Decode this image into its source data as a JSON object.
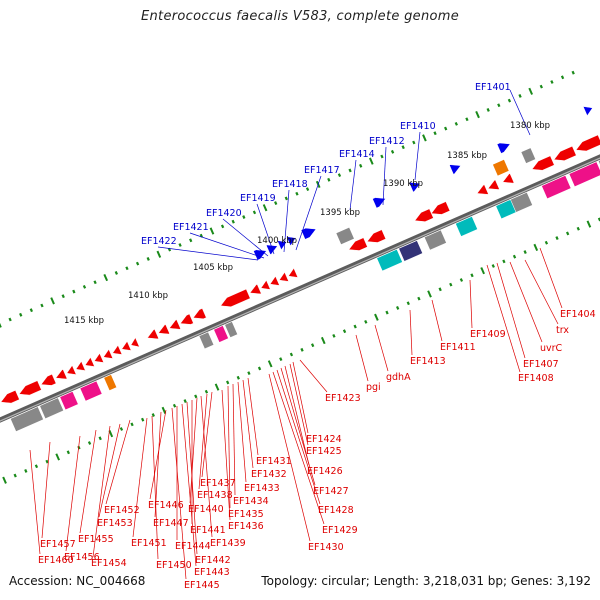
{
  "title": "Enterococcus faecalis V583, complete genome",
  "accession": "Accession: NC_004668",
  "topology": "Topology: circular; Length: 3,218,031 bp; Genes: 3,192",
  "colors": {
    "backbone": "#777777",
    "tick_ruler": "#1a8a1a",
    "forward_gene": "#ee0000",
    "reverse_gene": "#0000ee",
    "forward_label": "#dd0000",
    "reverse_label": "#0000cc",
    "cog_magenta": "#ee1188",
    "cog_cyan": "#00bbbb",
    "cog_gray": "#888888",
    "cog_navy": "#333377",
    "cog_orange": "#ee7700"
  },
  "scale_labels": [
    "1380 kbp",
    "1385 kbp",
    "1390 kbp",
    "1395 kbp",
    "1400 kbp",
    "1405 kbp",
    "1410 kbp",
    "1415 kbp"
  ],
  "reverse_gene_labels": [
    "EF1401",
    "EF1410",
    "EF1412",
    "EF1414",
    "EF1417",
    "EF1418",
    "EF1419",
    "EF1420",
    "EF1421",
    "EF1422"
  ],
  "forward_gene_labels": [
    "EF1404",
    "trx",
    "uvrC",
    "EF1407",
    "EF1408",
    "EF1409",
    "EF1411",
    "EF1413",
    "gdhA",
    "pgi",
    "EF1423",
    "EF1424",
    "EF1425",
    "EF1426",
    "EF1427",
    "EF1428",
    "EF1429",
    "EF1430",
    "EF1431",
    "EF1432",
    "EF1433",
    "EF1434",
    "EF1435",
    "EF1436",
    "EF1437",
    "EF1438",
    "EF1439",
    "EF1440",
    "EF1441",
    "EF1442",
    "EF1443",
    "EF1444",
    "EF1445",
    "EF1446",
    "EF1447",
    "EF1450",
    "EF1451",
    "EF1452",
    "EF1453",
    "EF1454",
    "EF1455",
    "EF1456",
    "EF1457",
    "EF1460"
  ]
}
